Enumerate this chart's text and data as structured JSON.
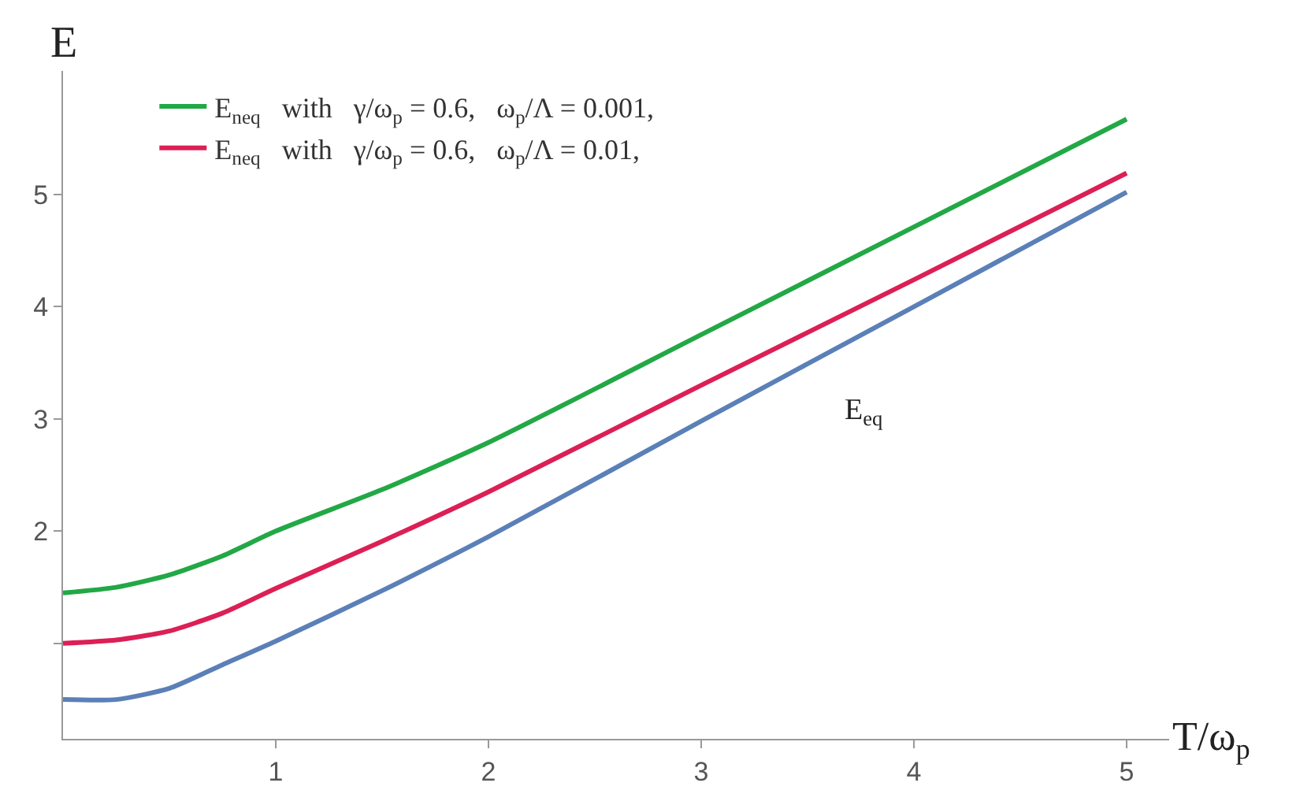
{
  "chart_data": {
    "type": "line",
    "xlabel": "T/ω$_{p}$",
    "ylabel": "E",
    "x": [
      0,
      0.25,
      0.5,
      0.75,
      1,
      1.5,
      2,
      3,
      4,
      5
    ],
    "series": [
      {
        "name": "E$_{neq}$   with   γ/ω$_{p}$ = 0.6,   ω$_{p}$/Λ = 0.001,",
        "color": "#22a845",
        "values": [
          1.45,
          1.5,
          1.61,
          1.78,
          2.0,
          2.37,
          2.79,
          3.75,
          4.71,
          5.67
        ]
      },
      {
        "name": "E$_{neq}$   with   γ/ω$_{p}$ = 0.6,   ω$_{p}$/Λ = 0.01,",
        "color": "#dc1f55",
        "values": [
          1.0,
          1.03,
          1.11,
          1.27,
          1.49,
          1.91,
          2.35,
          3.3,
          4.24,
          5.19
        ]
      },
      {
        "color": "#5b80b8",
        "values": [
          0.5,
          0.5,
          0.6,
          0.81,
          1.02,
          1.47,
          1.95,
          2.98,
          4.0,
          5.02
        ]
      }
    ],
    "annotations": [
      "E$_{eq}$"
    ],
    "xlim": [
      0,
      5.2
    ],
    "ylim": [
      0.15,
      6.1
    ],
    "xticks": [
      1,
      2,
      3,
      4,
      5
    ],
    "yticks": [
      {
        "value": 1,
        "label": null
      },
      2,
      3,
      4,
      5
    ],
    "legend": "top left",
    "marker": "none",
    "line_style": "solid"
  }
}
